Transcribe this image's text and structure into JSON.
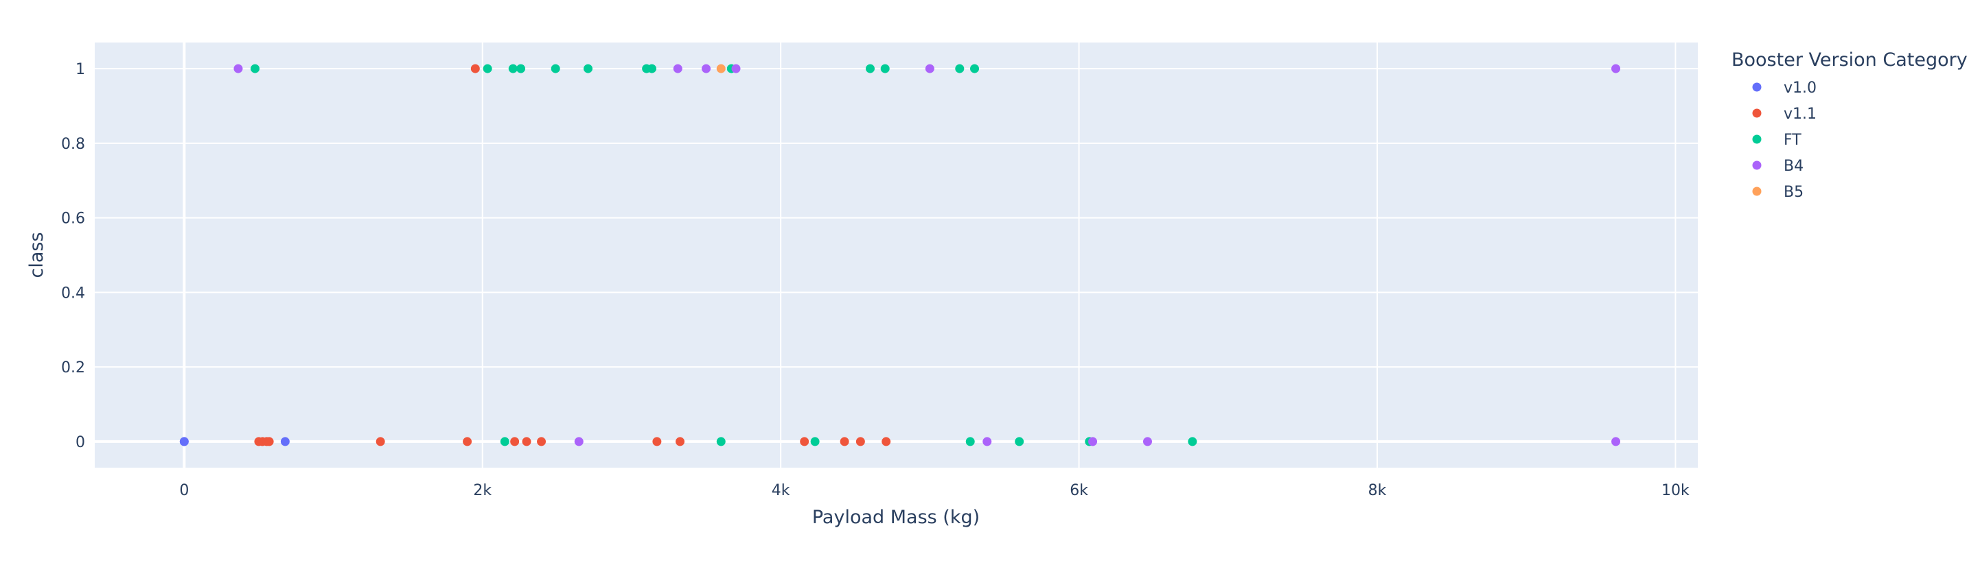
{
  "chart_data": {
    "type": "scatter",
    "xlabel": "Payload Mass (kg)",
    "ylabel": "class",
    "xlim": [
      -600,
      10150
    ],
    "ylim": [
      -0.07,
      1.07
    ],
    "x_ticks": [
      {
        "value": 0,
        "label": "0"
      },
      {
        "value": 2000,
        "label": "2k"
      },
      {
        "value": 4000,
        "label": "4k"
      },
      {
        "value": 6000,
        "label": "6k"
      },
      {
        "value": 8000,
        "label": "8k"
      },
      {
        "value": 10000,
        "label": "10k"
      }
    ],
    "y_ticks": [
      {
        "value": 0,
        "label": "0"
      },
      {
        "value": 0.2,
        "label": "0.2"
      },
      {
        "value": 0.4,
        "label": "0.4"
      },
      {
        "value": 0.6,
        "label": "0.6"
      },
      {
        "value": 0.8,
        "label": "0.8"
      },
      {
        "value": 1,
        "label": "1"
      }
    ],
    "grid": true,
    "legend_title": "Booster Version Category",
    "legend_position": "top-right",
    "series": [
      {
        "name": "v1.0",
        "color": "#636efa",
        "points": [
          [
            0,
            0
          ],
          [
            0,
            0
          ],
          [
            677,
            0
          ]
        ]
      },
      {
        "name": "v1.1",
        "color": "#ef553b",
        "points": [
          [
            500,
            0
          ],
          [
            525,
            0
          ],
          [
            570,
            0
          ],
          [
            553,
            0
          ],
          [
            1316,
            0
          ],
          [
            1898,
            0
          ],
          [
            1952,
            1
          ],
          [
            2216,
            0
          ],
          [
            2296,
            0
          ],
          [
            2395,
            0
          ],
          [
            3170,
            0
          ],
          [
            3325,
            0
          ],
          [
            4159,
            0
          ],
          [
            4428,
            0
          ],
          [
            4535,
            0
          ],
          [
            4707,
            0
          ]
        ]
      },
      {
        "name": "FT",
        "color": "#00cc96",
        "points": [
          [
            475,
            1
          ],
          [
            2034,
            1
          ],
          [
            2150,
            0
          ],
          [
            2205,
            1
          ],
          [
            2257,
            1
          ],
          [
            2490,
            1
          ],
          [
            2708,
            1
          ],
          [
            3100,
            1
          ],
          [
            3136,
            1
          ],
          [
            3600,
            0
          ],
          [
            3669,
            1
          ],
          [
            4230,
            0
          ],
          [
            4600,
            1
          ],
          [
            4700,
            1
          ],
          [
            5200,
            1
          ],
          [
            5300,
            1
          ],
          [
            5271,
            0
          ],
          [
            5600,
            0
          ],
          [
            6070,
            0
          ],
          [
            6761,
            0
          ]
        ]
      },
      {
        "name": "B4",
        "color": "#ab63fa",
        "points": [
          [
            362,
            1
          ],
          [
            2647,
            0
          ],
          [
            3310,
            1
          ],
          [
            3500,
            1
          ],
          [
            3700,
            1
          ],
          [
            5000,
            1
          ],
          [
            5384,
            0
          ],
          [
            6092,
            0
          ],
          [
            6460,
            0
          ],
          [
            9600,
            1
          ],
          [
            9600,
            0
          ]
        ]
      },
      {
        "name": "B5",
        "color": "#ffa15a",
        "points": [
          [
            3600,
            1
          ]
        ]
      }
    ]
  }
}
